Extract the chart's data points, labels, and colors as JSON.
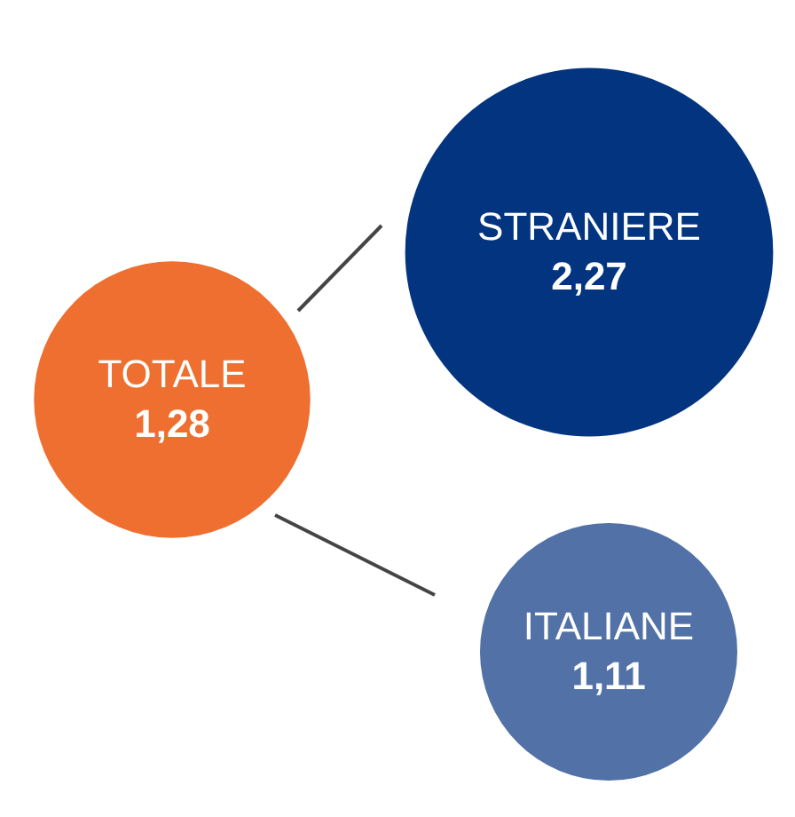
{
  "chart_data": {
    "type": "other",
    "categories": [
      "TOTALE",
      "STRANIERE",
      "ITALIANE"
    ],
    "values": [
      1.28,
      2.27,
      1.11
    ],
    "value_labels": [
      "1,28",
      "2,27",
      "1,11"
    ],
    "colors": [
      "#ee6f2f",
      "#02347f",
      "#5171a7"
    ]
  }
}
